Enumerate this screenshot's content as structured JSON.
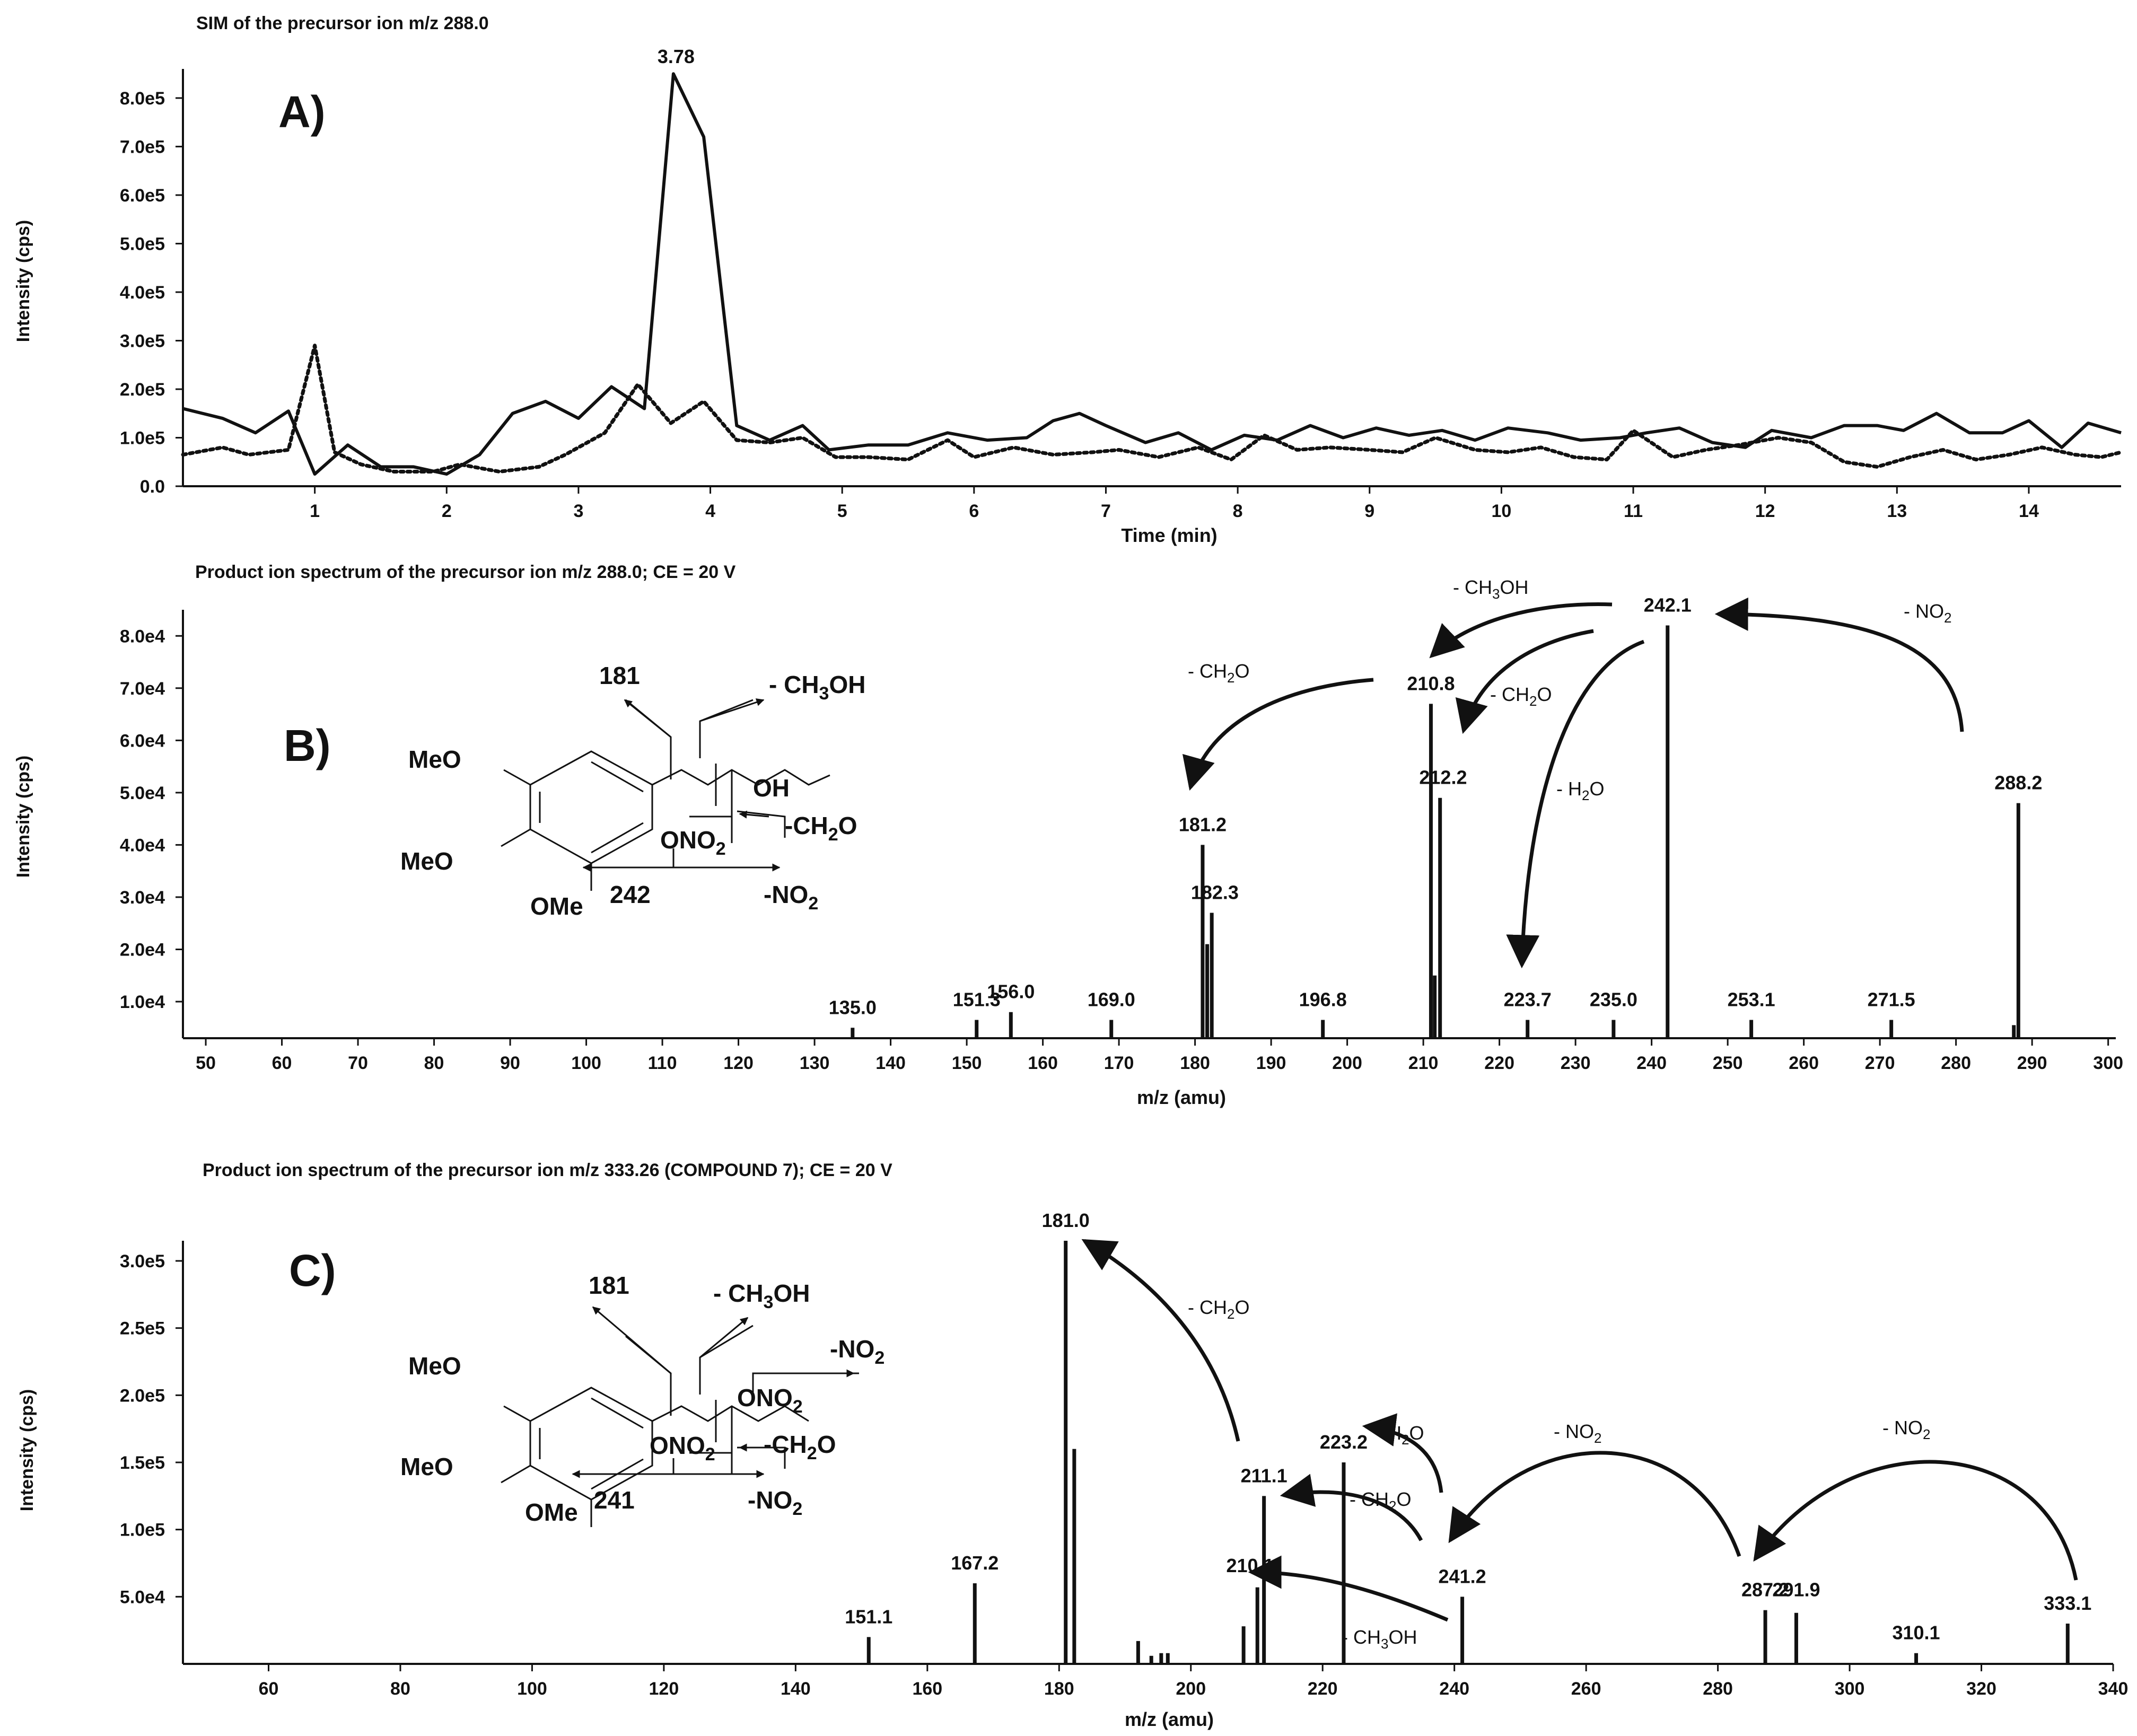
{
  "chart_data": [
    {
      "id": "A",
      "type": "line",
      "panel_label": "A)",
      "title": "SIM of the precursor ion m/z 288.0",
      "xlabel": "Time (min)",
      "ylabel": "Intensity (cps)",
      "xlim": [
        0,
        14.7
      ],
      "ylim": [
        0,
        860000
      ],
      "x_ticks": [
        1,
        2,
        3,
        4,
        5,
        6,
        7,
        8,
        9,
        10,
        11,
        12,
        13,
        14
      ],
      "x_tick_labels": [
        "1",
        "2",
        "3",
        "4",
        "5",
        "6",
        "7",
        "8",
        "9",
        "10",
        "11",
        "12",
        "13",
        "14"
      ],
      "y_ticks": [
        0,
        100000,
        200000,
        300000,
        400000,
        500000,
        600000,
        700000,
        800000
      ],
      "y_tick_labels": [
        "0.0",
        "1.0e5",
        "2.0e5",
        "3.0e5",
        "4.0e5",
        "5.0e5",
        "6.0e5",
        "7.0e5",
        "8.0e5"
      ],
      "peak_label": "3.78",
      "peak_label_x": 3.78,
      "peak_label_y": 850000,
      "series": [
        {
          "name": "solid",
          "style": "solid",
          "x": [
            0,
            0.3,
            0.55,
            0.8,
            1.0,
            1.25,
            1.5,
            1.75,
            2.0,
            2.25,
            2.5,
            2.75,
            3.0,
            3.25,
            3.5,
            3.72,
            3.95,
            4.2,
            4.45,
            4.7,
            4.9,
            5.2,
            5.5,
            5.8,
            6.1,
            6.4,
            6.6,
            6.8,
            7.0,
            7.3,
            7.55,
            7.8,
            8.05,
            8.3,
            8.55,
            8.8,
            9.05,
            9.3,
            9.55,
            9.8,
            10.05,
            10.35,
            10.6,
            10.9,
            11.1,
            11.35,
            11.6,
            11.85,
            12.05,
            12.35,
            12.6,
            12.85,
            13.05,
            13.3,
            13.55,
            13.8,
            14.0,
            14.25,
            14.45,
            14.7
          ],
          "y": [
            160000,
            140000,
            110000,
            155000,
            25000,
            85000,
            40000,
            40000,
            25000,
            65000,
            150000,
            175000,
            140000,
            205000,
            160000,
            850000,
            720000,
            125000,
            95000,
            125000,
            75000,
            85000,
            85000,
            110000,
            95000,
            100000,
            135000,
            150000,
            125000,
            90000,
            110000,
            75000,
            105000,
            95000,
            125000,
            100000,
            120000,
            105000,
            115000,
            95000,
            120000,
            110000,
            95000,
            100000,
            110000,
            120000,
            90000,
            80000,
            115000,
            100000,
            125000,
            125000,
            115000,
            150000,
            110000,
            110000,
            135000,
            80000,
            130000,
            110000
          ]
        },
        {
          "name": "dotted",
          "style": "dotted",
          "x": [
            0,
            0.3,
            0.5,
            0.8,
            1.0,
            1.15,
            1.35,
            1.6,
            1.9,
            2.1,
            2.4,
            2.7,
            2.9,
            3.2,
            3.45,
            3.7,
            3.95,
            4.2,
            4.45,
            4.7,
            4.95,
            5.2,
            5.5,
            5.8,
            6.0,
            6.3,
            6.6,
            6.9,
            7.1,
            7.4,
            7.7,
            7.95,
            8.2,
            8.45,
            8.7,
            9.0,
            9.25,
            9.5,
            9.8,
            10.05,
            10.3,
            10.55,
            10.8,
            11.0,
            11.3,
            11.55,
            11.8,
            12.1,
            12.35,
            12.6,
            12.85,
            13.1,
            13.35,
            13.6,
            13.85,
            14.1,
            14.35,
            14.55,
            14.7
          ],
          "y": [
            65000,
            80000,
            65000,
            75000,
            290000,
            70000,
            45000,
            30000,
            30000,
            45000,
            30000,
            40000,
            65000,
            110000,
            210000,
            130000,
            175000,
            95000,
            90000,
            100000,
            60000,
            60000,
            55000,
            95000,
            60000,
            80000,
            65000,
            70000,
            75000,
            60000,
            80000,
            55000,
            105000,
            75000,
            80000,
            75000,
            70000,
            100000,
            75000,
            70000,
            80000,
            60000,
            55000,
            115000,
            60000,
            75000,
            85000,
            100000,
            90000,
            50000,
            40000,
            60000,
            75000,
            55000,
            65000,
            80000,
            65000,
            60000,
            70000
          ]
        }
      ]
    },
    {
      "id": "B",
      "type": "bar",
      "panel_label": "B)",
      "title": "Product ion spectrum of the precursor ion m/z 288.0; CE = 20 V",
      "xlabel": "m/z (amu)",
      "ylabel": "Intensity (cps)",
      "xlim": [
        47,
        301
      ],
      "ylim": [
        3000,
        85000
      ],
      "x_ticks": [
        50,
        60,
        70,
        80,
        90,
        100,
        110,
        120,
        130,
        140,
        150,
        160,
        170,
        180,
        190,
        200,
        210,
        220,
        230,
        240,
        250,
        260,
        270,
        280,
        290,
        300
      ],
      "x_tick_labels": [
        "50",
        "60",
        "70",
        "80",
        "90",
        "100",
        "110",
        "120",
        "130",
        "140",
        "150",
        "160",
        "170",
        "180",
        "190",
        "200",
        "210",
        "220",
        "230",
        "240",
        "250",
        "260",
        "270",
        "280",
        "290",
        "300"
      ],
      "y_ticks": [
        10000,
        20000,
        30000,
        40000,
        50000,
        60000,
        70000,
        80000
      ],
      "y_tick_labels": [
        "1.0e4",
        "2.0e4",
        "3.0e4",
        "4.0e4",
        "5.0e4",
        "6.0e4",
        "7.0e4",
        "8.0e4"
      ],
      "peaks": [
        {
          "mz": 135.0,
          "intensity": 5000
        },
        {
          "mz": 151.3,
          "intensity": 6500
        },
        {
          "mz": 155.8,
          "intensity": 8000
        },
        {
          "mz": 169.0,
          "intensity": 6500
        },
        {
          "mz": 181.0,
          "intensity": 40000
        },
        {
          "mz": 181.6,
          "intensity": 21000
        },
        {
          "mz": 182.2,
          "intensity": 27000
        },
        {
          "mz": 196.8,
          "intensity": 6500
        },
        {
          "mz": 211.0,
          "intensity": 67000
        },
        {
          "mz": 211.5,
          "intensity": 15000
        },
        {
          "mz": 212.2,
          "intensity": 49000
        },
        {
          "mz": 223.7,
          "intensity": 6500
        },
        {
          "mz": 235.0,
          "intensity": 6500
        },
        {
          "mz": 242.1,
          "intensity": 82000
        },
        {
          "mz": 253.1,
          "intensity": 6500
        },
        {
          "mz": 271.5,
          "intensity": 6500
        },
        {
          "mz": 287.6,
          "intensity": 5500
        },
        {
          "mz": 288.2,
          "intensity": 48000
        }
      ],
      "peak_labels": [
        {
          "text": "135.0",
          "mz": 135.0,
          "intensity": 5000
        },
        {
          "text": "151.3",
          "mz": 151.3,
          "intensity": 6500
        },
        {
          "text": "156.0",
          "mz": 155.8,
          "intensity": 8000
        },
        {
          "text": "169.0",
          "mz": 169.0,
          "intensity": 6500
        },
        {
          "text": "181.2",
          "mz": 181.0,
          "intensity": 40000
        },
        {
          "text": "182.3",
          "mz": 182.6,
          "intensity": 27000
        },
        {
          "text": "196.8",
          "mz": 196.8,
          "intensity": 6500
        },
        {
          "text": "210.8",
          "mz": 211.0,
          "intensity": 67000
        },
        {
          "text": "212.2",
          "mz": 212.6,
          "intensity": 49000
        },
        {
          "text": "223.7",
          "mz": 223.7,
          "intensity": 6500
        },
        {
          "text": "235.0",
          "mz": 235.0,
          "intensity": 6500
        },
        {
          "text": "242.1",
          "mz": 242.1,
          "intensity": 82000
        },
        {
          "text": "253.1",
          "mz": 253.1,
          "intensity": 6500
        },
        {
          "text": "271.5",
          "mz": 271.5,
          "intensity": 6500
        },
        {
          "text": "288.2",
          "mz": 288.2,
          "intensity": 48000
        }
      ],
      "loss_annotations": [
        "- CH3OH",
        "- NO2",
        "- CH2O",
        "- CH2O",
        "- H2O"
      ],
      "structure_labels": [
        "181",
        "- CH3OH",
        "MeO",
        "MeO",
        "OMe",
        "OH",
        "ONO2",
        "-CH2O",
        "242",
        "-NO2"
      ]
    },
    {
      "id": "C",
      "type": "bar",
      "panel_label": "C)",
      "title": "Product ion spectrum of the precursor ion m/z 333.26 (COMPOUND 7); CE = 20 V",
      "xlabel": "m/z (amu)",
      "ylabel": "Intensity (cps)",
      "xlim": [
        47,
        340
      ],
      "ylim": [
        0,
        315000
      ],
      "x_ticks": [
        60,
        80,
        100,
        120,
        140,
        160,
        180,
        200,
        220,
        240,
        260,
        280,
        300,
        320,
        340
      ],
      "x_tick_labels": [
        "60",
        "80",
        "100",
        "120",
        "140",
        "160",
        "180",
        "200",
        "220",
        "240",
        "260",
        "280",
        "300",
        "320",
        "340"
      ],
      "y_ticks": [
        50000,
        100000,
        150000,
        200000,
        250000,
        300000
      ],
      "y_tick_labels": [
        "5.0e4",
        "1.0e5",
        "1.5e5",
        "2.0e5",
        "2.5e5",
        "3.0e5"
      ],
      "peaks": [
        {
          "mz": 151.1,
          "intensity": 20000
        },
        {
          "mz": 167.2,
          "intensity": 60000
        },
        {
          "mz": 181.0,
          "intensity": 315000
        },
        {
          "mz": 182.3,
          "intensity": 160000
        },
        {
          "mz": 192.0,
          "intensity": 17000
        },
        {
          "mz": 194.0,
          "intensity": 6000
        },
        {
          "mz": 195.5,
          "intensity": 8000
        },
        {
          "mz": 196.5,
          "intensity": 8000
        },
        {
          "mz": 208.0,
          "intensity": 28000
        },
        {
          "mz": 210.1,
          "intensity": 57000
        },
        {
          "mz": 211.1,
          "intensity": 125000
        },
        {
          "mz": 223.2,
          "intensity": 150000
        },
        {
          "mz": 241.2,
          "intensity": 50000
        },
        {
          "mz": 287.2,
          "intensity": 40000
        },
        {
          "mz": 291.9,
          "intensity": 38000
        },
        {
          "mz": 310.1,
          "intensity": 8000
        },
        {
          "mz": 333.1,
          "intensity": 30000
        }
      ],
      "peak_labels": [
        {
          "text": "151.1",
          "mz": 151.1,
          "intensity": 20000
        },
        {
          "text": "167.2",
          "mz": 167.2,
          "intensity": 60000
        },
        {
          "text": "181.0",
          "mz": 181.0,
          "intensity": 315000
        },
        {
          "text": "210.1",
          "mz": 209.0,
          "intensity": 58000
        },
        {
          "text": "211.1",
          "mz": 211.1,
          "intensity": 125000
        },
        {
          "text": "223.2",
          "mz": 223.2,
          "intensity": 150000
        },
        {
          "text": "241.2",
          "mz": 241.2,
          "intensity": 50000
        },
        {
          "text": "287.2",
          "mz": 287.2,
          "intensity": 40000
        },
        {
          "text": "291.9",
          "mz": 291.9,
          "intensity": 40000
        },
        {
          "text": "310.1",
          "mz": 310.1,
          "intensity": 8000
        },
        {
          "text": "333.1",
          "mz": 333.1,
          "intensity": 30000
        }
      ],
      "loss_annotations": [
        "- CH2O",
        "- H2O",
        "- CH2O",
        "- CH3OH",
        "- NO2",
        "- NO2"
      ],
      "structure_labels": [
        "181",
        "- CH3OH",
        "-NO2",
        "MeO",
        "MeO",
        "OMe",
        "ONO2",
        "ONO2",
        "-CH2O",
        "241",
        "-NO2"
      ]
    }
  ]
}
